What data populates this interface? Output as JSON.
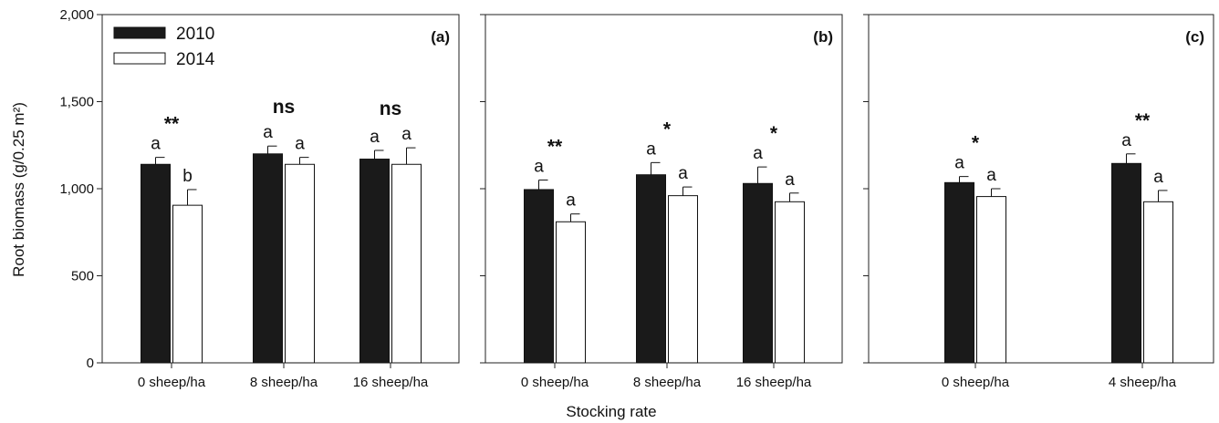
{
  "chart_data": {
    "type": "bar",
    "ylabel": "Root biomass (g/0.25 m²)",
    "xlabel": "Stocking rate",
    "ylim": [
      0,
      2000
    ],
    "yticks": [
      0,
      500,
      1000,
      1500,
      2000
    ],
    "ytick_labels": [
      "0",
      "500",
      "1,000",
      "1,500",
      "2,000"
    ],
    "legend": {
      "placement": "top-left",
      "entries": [
        {
          "name": "2010",
          "color": "#1a1a1a"
        },
        {
          "name": "2014",
          "color": "#ffffff"
        }
      ]
    },
    "panels": [
      {
        "label": "(a)",
        "categories": [
          "0 sheep/ha",
          "8 sheep/ha",
          "16 sheep/ha"
        ],
        "series": [
          {
            "name": "2010",
            "values": [
              1140,
              1200,
              1170
            ],
            "errors": [
              40,
              45,
              50
            ],
            "letters": [
              "a",
              "a",
              "a"
            ]
          },
          {
            "name": "2014",
            "values": [
              905,
              1140,
              1140
            ],
            "errors": [
              90,
              40,
              95
            ],
            "letters": [
              "b",
              "a",
              "a"
            ]
          }
        ],
        "significance": [
          "**",
          "ns",
          "ns"
        ]
      },
      {
        "label": "(b)",
        "categories": [
          "0 sheep/ha",
          "8 sheep/ha",
          "16 sheep/ha"
        ],
        "series": [
          {
            "name": "2010",
            "values": [
              995,
              1080,
              1030
            ],
            "errors": [
              55,
              70,
              95
            ],
            "letters": [
              "a",
              "a",
              "a"
            ]
          },
          {
            "name": "2014",
            "values": [
              810,
              960,
              925
            ],
            "errors": [
              45,
              50,
              50
            ],
            "letters": [
              "a",
              "a",
              "a"
            ]
          }
        ],
        "significance": [
          "**",
          "*",
          "*"
        ]
      },
      {
        "label": "(c)",
        "categories": [
          "0 sheep/ha",
          "4 sheep/ha"
        ],
        "series": [
          {
            "name": "2010",
            "values": [
              1035,
              1145
            ],
            "errors": [
              35,
              55
            ],
            "letters": [
              "a",
              "a"
            ]
          },
          {
            "name": "2014",
            "values": [
              955,
              925
            ],
            "errors": [
              45,
              65
            ],
            "letters": [
              "a",
              "a"
            ]
          }
        ],
        "significance": [
          "*",
          "**"
        ]
      }
    ]
  }
}
